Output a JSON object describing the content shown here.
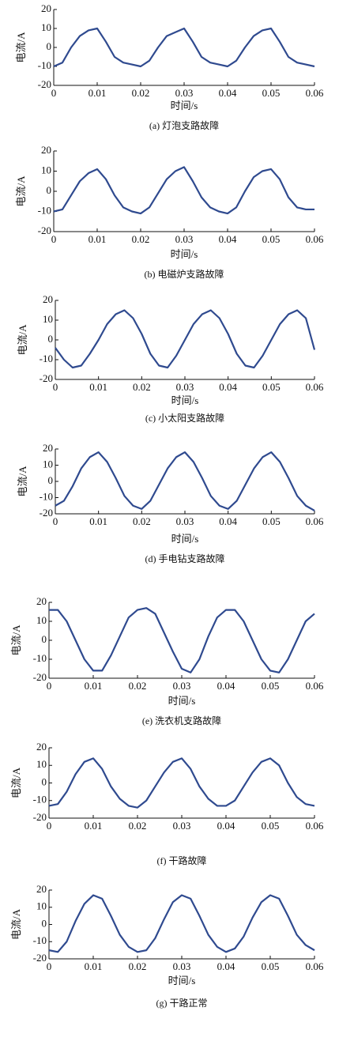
{
  "chart_data": [
    {
      "type": "line",
      "caption": "(a) 灯泡支路故障",
      "x_label": "时间/s",
      "y_label": "电流/A",
      "color": "#2f4a8f",
      "xlim": [
        0,
        0.06
      ],
      "ylim": [
        -20,
        20
      ],
      "xticks": [
        0,
        0.01,
        0.02,
        0.03,
        0.04,
        0.05,
        0.06
      ],
      "yticks": [
        -20,
        -10,
        0,
        10,
        20
      ],
      "x": [
        0,
        0.002,
        0.004,
        0.006,
        0.008,
        0.01,
        0.012,
        0.014,
        0.016,
        0.018,
        0.02,
        0.022,
        0.024,
        0.026,
        0.028,
        0.03,
        0.032,
        0.034,
        0.036,
        0.038,
        0.04,
        0.042,
        0.044,
        0.046,
        0.048,
        0.05,
        0.052,
        0.054,
        0.056,
        0.058,
        0.06
      ],
      "values": [
        -10,
        -8,
        0,
        6,
        9,
        10,
        3,
        -5,
        -8,
        -9,
        -10,
        -7,
        0,
        6,
        8,
        10,
        3,
        -5,
        -8,
        -9,
        -10,
        -7,
        0,
        6,
        9,
        10,
        3,
        -5,
        -8,
        -9,
        -10
      ]
    },
    {
      "type": "line",
      "caption": "(b) 电磁炉支路故障",
      "x_label": "时间/s",
      "y_label": "电流/A",
      "color": "#2f4a8f",
      "xlim": [
        0,
        0.06
      ],
      "ylim": [
        -20,
        20
      ],
      "xticks": [
        0,
        0.01,
        0.02,
        0.03,
        0.04,
        0.05,
        0.06
      ],
      "yticks": [
        -20,
        -10,
        0,
        10,
        20
      ],
      "x": [
        0,
        0.002,
        0.004,
        0.006,
        0.008,
        0.01,
        0.012,
        0.014,
        0.016,
        0.018,
        0.02,
        0.022,
        0.024,
        0.026,
        0.028,
        0.03,
        0.032,
        0.034,
        0.036,
        0.038,
        0.04,
        0.042,
        0.044,
        0.046,
        0.048,
        0.05,
        0.052,
        0.054,
        0.056,
        0.058,
        0.06
      ],
      "values": [
        -10,
        -9,
        -2,
        5,
        9,
        11,
        6,
        -2,
        -8,
        -10,
        -11,
        -8,
        -1,
        6,
        10,
        12,
        5,
        -3,
        -8,
        -10,
        -11,
        -8,
        0,
        7,
        10,
        11,
        6,
        -3,
        -8,
        -9,
        -9
      ]
    },
    {
      "type": "line",
      "caption": "(c) 小太阳支路故障",
      "x_label": "时间/s",
      "y_label": "电流/A",
      "color": "#2f4a8f",
      "xlim": [
        0,
        0.06
      ],
      "ylim": [
        -20,
        20
      ],
      "xticks": [
        0,
        0.01,
        0.02,
        0.03,
        0.04,
        0.05,
        0.06
      ],
      "yticks": [
        -20,
        -10,
        0,
        10,
        20
      ],
      "x": [
        0,
        0.002,
        0.004,
        0.006,
        0.008,
        0.01,
        0.012,
        0.014,
        0.016,
        0.018,
        0.02,
        0.022,
        0.024,
        0.026,
        0.028,
        0.03,
        0.032,
        0.034,
        0.036,
        0.038,
        0.04,
        0.042,
        0.044,
        0.046,
        0.048,
        0.05,
        0.052,
        0.054,
        0.056,
        0.058,
        0.06
      ],
      "values": [
        -4,
        -10,
        -14,
        -13,
        -7,
        0,
        8,
        13,
        15,
        11,
        3,
        -7,
        -13,
        -14,
        -8,
        0,
        8,
        13,
        15,
        11,
        3,
        -7,
        -13,
        -14,
        -8,
        0,
        8,
        13,
        15,
        11,
        -5
      ]
    },
    {
      "type": "line",
      "caption": "(d) 手电钻支路故障",
      "x_label": "时间/s",
      "y_label": "电流/A",
      "color": "#2f4a8f",
      "xlim": [
        0,
        0.06
      ],
      "ylim": [
        -20,
        20
      ],
      "xticks": [
        0,
        0.01,
        0.02,
        0.03,
        0.04,
        0.05,
        0.06
      ],
      "yticks": [
        -20,
        -10,
        0,
        10,
        20
      ],
      "x": [
        0,
        0.002,
        0.004,
        0.006,
        0.008,
        0.01,
        0.012,
        0.014,
        0.016,
        0.018,
        0.02,
        0.022,
        0.024,
        0.026,
        0.028,
        0.03,
        0.032,
        0.034,
        0.036,
        0.038,
        0.04,
        0.042,
        0.044,
        0.046,
        0.048,
        0.05,
        0.052,
        0.054,
        0.056,
        0.058,
        0.06
      ],
      "values": [
        -15,
        -12,
        -3,
        8,
        15,
        18,
        12,
        2,
        -9,
        -15,
        -17,
        -12,
        -2,
        8,
        15,
        18,
        12,
        2,
        -9,
        -15,
        -17,
        -12,
        -2,
        8,
        15,
        18,
        12,
        2,
        -9,
        -15,
        -18
      ]
    },
    {
      "type": "line",
      "caption": "(e) 洗衣机支路故障",
      "x_label": "时间/s",
      "y_label": "电流/A",
      "color": "#2f4a8f",
      "xlim": [
        0,
        0.06
      ],
      "ylim": [
        -20,
        20
      ],
      "xticks": [
        0,
        0.01,
        0.02,
        0.03,
        0.04,
        0.05,
        0.06
      ],
      "yticks": [
        -20,
        -10,
        0,
        10,
        20
      ],
      "x": [
        0,
        0.002,
        0.004,
        0.006,
        0.008,
        0.01,
        0.012,
        0.014,
        0.016,
        0.018,
        0.02,
        0.022,
        0.024,
        0.026,
        0.028,
        0.03,
        0.032,
        0.034,
        0.036,
        0.038,
        0.04,
        0.042,
        0.044,
        0.046,
        0.048,
        0.05,
        0.052,
        0.054,
        0.056,
        0.058,
        0.06
      ],
      "values": [
        16,
        16,
        10,
        0,
        -10,
        -16,
        -16,
        -8,
        2,
        12,
        16,
        17,
        14,
        4,
        -6,
        -15,
        -17,
        -10,
        2,
        12,
        16,
        16,
        10,
        0,
        -10,
        -16,
        -17,
        -10,
        0,
        10,
        14
      ]
    },
    {
      "type": "line",
      "caption": "(f) 干路故障",
      "y_label": "电流/A",
      "color": "#2f4a8f",
      "xlim": [
        0,
        0.06
      ],
      "ylim": [
        -20,
        20
      ],
      "xticks": [
        0,
        0.01,
        0.02,
        0.03,
        0.04,
        0.05,
        0.06
      ],
      "yticks": [
        -20,
        -10,
        0,
        10,
        20
      ],
      "x": [
        0,
        0.002,
        0.004,
        0.006,
        0.008,
        0.01,
        0.012,
        0.014,
        0.016,
        0.018,
        0.02,
        0.022,
        0.024,
        0.026,
        0.028,
        0.03,
        0.032,
        0.034,
        0.036,
        0.038,
        0.04,
        0.042,
        0.044,
        0.046,
        0.048,
        0.05,
        0.052,
        0.054,
        0.056,
        0.058,
        0.06
      ],
      "values": [
        -13,
        -12,
        -5,
        5,
        12,
        14,
        8,
        -2,
        -9,
        -13,
        -14,
        -10,
        -2,
        6,
        12,
        14,
        8,
        -2,
        -9,
        -13,
        -13,
        -10,
        -2,
        6,
        12,
        14,
        10,
        0,
        -8,
        -12,
        -13
      ]
    },
    {
      "type": "line",
      "caption": "(g) 干路正常",
      "x_label": "时间/s",
      "y_label": "电流/A",
      "color": "#2f4a8f",
      "xlim": [
        0,
        0.06
      ],
      "ylim": [
        -20,
        20
      ],
      "xticks": [
        0,
        0.01,
        0.02,
        0.03,
        0.04,
        0.05,
        0.06
      ],
      "yticks": [
        -20,
        -10,
        0,
        10,
        20
      ],
      "x": [
        0,
        0.002,
        0.004,
        0.006,
        0.008,
        0.01,
        0.012,
        0.014,
        0.016,
        0.018,
        0.02,
        0.022,
        0.024,
        0.026,
        0.028,
        0.03,
        0.032,
        0.034,
        0.036,
        0.038,
        0.04,
        0.042,
        0.044,
        0.046,
        0.048,
        0.05,
        0.052,
        0.054,
        0.056,
        0.058,
        0.06
      ],
      "values": [
        -15,
        -16,
        -10,
        2,
        12,
        17,
        15,
        5,
        -6,
        -13,
        -16,
        -15,
        -8,
        3,
        13,
        17,
        15,
        5,
        -6,
        -13,
        -16,
        -14,
        -7,
        4,
        13,
        17,
        15,
        5,
        -6,
        -12,
        -15
      ]
    }
  ]
}
